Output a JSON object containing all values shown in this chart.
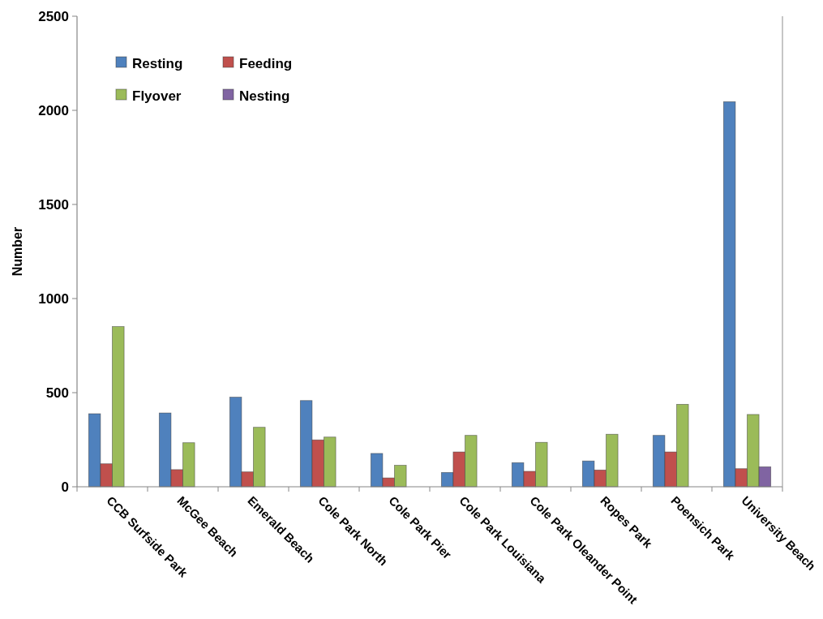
{
  "chart_data": {
    "type": "bar",
    "ylabel": "Number",
    "categories": [
      "CCB Surfside Park",
      "McGee Beach",
      "Emerald Beach",
      "Cole Park North",
      "Cole Park Pier",
      "Cole Park Louisiana",
      "Cole Park Oleander Point",
      "Ropes Park",
      "Poensich Park",
      "University Beach"
    ],
    "series": [
      {
        "name": "Resting",
        "color": "#4f81bd",
        "values": [
          388,
          392,
          476,
          458,
          177,
          76,
          128,
          137,
          273,
          2046
        ]
      },
      {
        "name": "Feeding",
        "color": "#c0504d",
        "values": [
          122,
          91,
          79,
          249,
          47,
          185,
          82,
          89,
          185,
          96
        ]
      },
      {
        "name": "Flyover",
        "color": "#9bbb59",
        "values": [
          851,
          234,
          316,
          264,
          114,
          273,
          236,
          279,
          438,
          384
        ]
      },
      {
        "name": "Nesting",
        "color": "#8064a2",
        "values": [
          0,
          0,
          0,
          0,
          0,
          0,
          0,
          0,
          0,
          106
        ]
      }
    ],
    "ylim": [
      0,
      2500
    ],
    "yticks": [
      0,
      500,
      1000,
      1500,
      2000,
      2500
    ],
    "grid": false,
    "legend": "top left"
  }
}
